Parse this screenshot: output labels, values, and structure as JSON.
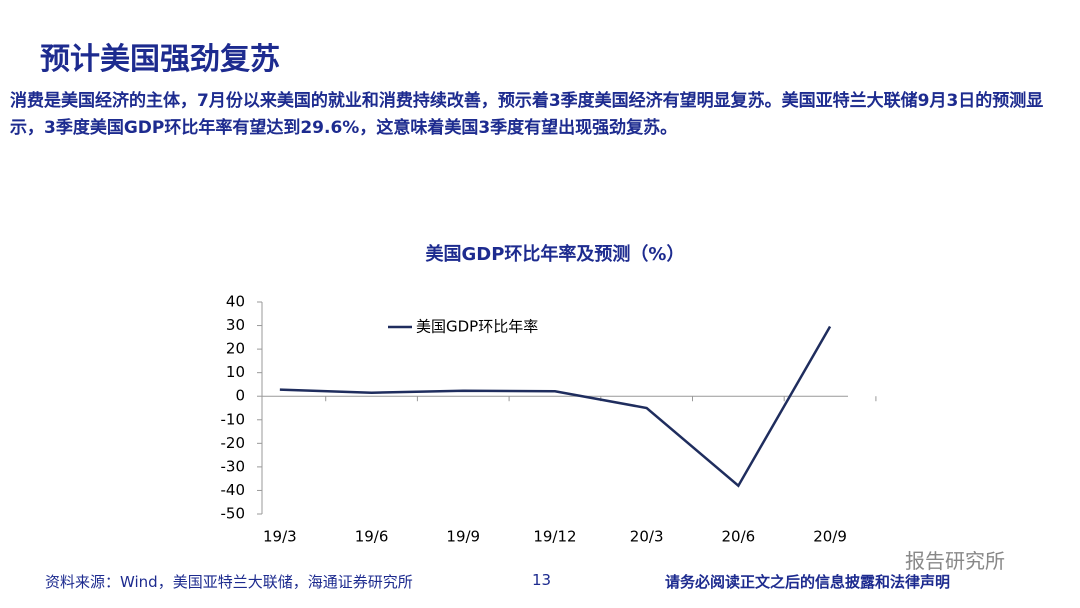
{
  "header": {
    "title": "预计美国强劲复苏"
  },
  "paragraph": "消费是美国经济的主体，7月份以来美国的就业和消费持续改善，预示着3季度美国经济有望明显复苏。美国亚特兰大联储9月3日的预测显示，3季度美国GDP环比年率有望达到29.6%，这意味着美国3季度有望出现强劲复苏。",
  "chart_data": {
    "type": "line",
    "title": "美国GDP环比年率及预测（%）",
    "categories": [
      "19/3",
      "19/6",
      "19/9",
      "19/12",
      "20/3",
      "20/6",
      "20/9"
    ],
    "series": [
      {
        "name": "美国GDP环比年率",
        "color": "#1f2d5e",
        "values": [
          2.8,
          1.5,
          2.3,
          2.1,
          -5.0,
          -38.0,
          29.6
        ]
      }
    ],
    "ylim": [
      -50,
      40
    ],
    "yticks": [
      -50,
      -40,
      -30,
      -20,
      -10,
      0,
      10,
      20,
      30,
      40
    ]
  },
  "footer": {
    "source": "资料来源：Wind，美国亚特兰大联储，海通证券研究所",
    "page": "13",
    "disclaimer": "请务必阅读正文之后的信息披露和法律声明",
    "watermark": "报告研究所"
  }
}
